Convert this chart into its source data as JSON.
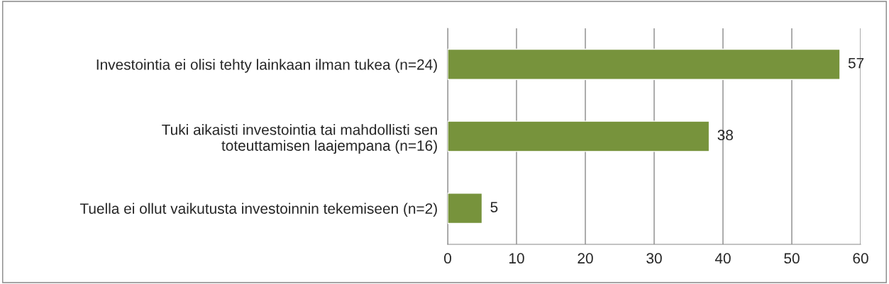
{
  "chart_data": {
    "type": "bar",
    "orientation": "horizontal",
    "categories": [
      "Investointia ei olisi tehty lainkaan ilman tukea (n=24)",
      "Tuki aikaisti investointia tai mahdollisti sen toteuttamisen laajempana (n=16)",
      "Tuella ei ollut vaikutusta investoinnin tekemiseen (n=2)"
    ],
    "values": [
      57,
      38,
      5
    ],
    "color": "#77933c",
    "xlim": [
      0,
      60
    ],
    "xticks": [
      0,
      10,
      20,
      30,
      40,
      50,
      60
    ],
    "grid": "x",
    "data_labels": true
  }
}
